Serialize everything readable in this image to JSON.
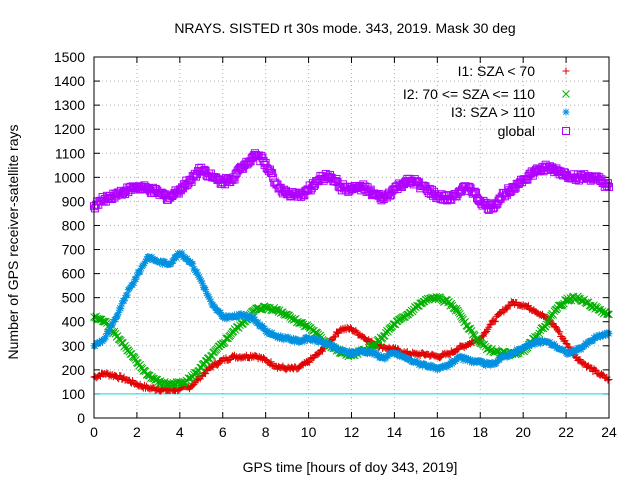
{
  "chart_data": {
    "type": "scatter",
    "title": "NRAYS. SISTED rt 30s mode. 343, 2019. Mask 30 deg",
    "xlabel": "GPS time [hours of doy 343, 2019]",
    "ylabel": "Number of GPS receiver-satellite rays",
    "xlim": [
      0,
      24
    ],
    "ylim": [
      0,
      1500
    ],
    "x_ticks": [
      "0",
      "2",
      "4",
      "6",
      "8",
      "10",
      "12",
      "14",
      "16",
      "18",
      "20",
      "22",
      "24"
    ],
    "y_ticks": [
      "0",
      "100",
      "200",
      "300",
      "400",
      "500",
      "600",
      "700",
      "800",
      "900",
      "1000",
      "1100",
      "1200",
      "1300",
      "1400",
      "1500"
    ],
    "grid": true,
    "legend_position": "top-right",
    "reference_line": {
      "y": 100,
      "color": "#00e0e0"
    },
    "series": [
      {
        "name": "I1: SZA < 70",
        "marker": "plus",
        "color": "#e00000",
        "x": [
          0,
          0.5,
          1,
          1.5,
          2,
          2.5,
          3,
          3.5,
          4,
          4.5,
          5,
          5.5,
          6,
          6.5,
          7,
          7.5,
          8,
          8.5,
          9,
          9.5,
          10,
          10.5,
          11,
          11.5,
          12,
          12.5,
          13,
          13.5,
          14,
          14.5,
          15,
          15.5,
          16,
          16.5,
          17,
          17.5,
          18,
          18.5,
          19,
          19.5,
          20,
          20.5,
          21,
          21.5,
          22,
          22.5,
          23,
          23.5,
          24
        ],
        "values": [
          170,
          185,
          175,
          160,
          140,
          125,
          120,
          115,
          120,
          130,
          175,
          215,
          240,
          255,
          255,
          260,
          240,
          215,
          205,
          205,
          235,
          270,
          320,
          370,
          370,
          340,
          310,
          295,
          285,
          270,
          265,
          265,
          255,
          265,
          290,
          310,
          330,
          390,
          440,
          480,
          470,
          450,
          420,
          380,
          310,
          250,
          215,
          185,
          160
        ]
      },
      {
        "name": "I2: 70 <= SZA <= 110",
        "marker": "x",
        "color": "#00b000",
        "x": [
          0,
          0.5,
          1,
          1.5,
          2,
          2.5,
          3,
          3.5,
          4,
          4.5,
          5,
          5.5,
          6,
          6.5,
          7,
          7.5,
          8,
          8.5,
          9,
          9.5,
          10,
          10.5,
          11,
          11.5,
          12,
          12.5,
          13,
          13.5,
          14,
          14.5,
          15,
          15.5,
          16,
          16.5,
          17,
          17.5,
          18,
          18.5,
          19,
          19.5,
          20,
          20.5,
          21,
          21.5,
          22,
          22.5,
          23,
          23.5,
          24
        ],
        "values": [
          420,
          400,
          350,
          290,
          230,
          180,
          150,
          140,
          145,
          165,
          210,
          260,
          310,
          360,
          400,
          450,
          460,
          450,
          430,
          400,
          380,
          340,
          300,
          270,
          260,
          275,
          300,
          340,
          390,
          420,
          460,
          490,
          500,
          480,
          440,
          370,
          310,
          280,
          270,
          265,
          280,
          330,
          380,
          450,
          490,
          500,
          480,
          450,
          430
        ]
      },
      {
        "name": "I3: SZA > 110",
        "marker": "star",
        "color": "#0090e0",
        "x": [
          0,
          0.5,
          1,
          1.5,
          2,
          2.5,
          3,
          3.5,
          4,
          4.5,
          5,
          5.5,
          6,
          6.5,
          7,
          7.5,
          8,
          8.5,
          9,
          9.5,
          10,
          10.5,
          11,
          11.5,
          12,
          12.5,
          13,
          13.5,
          14,
          14.5,
          15,
          15.5,
          16,
          16.5,
          17,
          17.5,
          18,
          18.5,
          19,
          19.5,
          20,
          20.5,
          21,
          21.5,
          22,
          22.5,
          23,
          23.5,
          24
        ],
        "values": [
          300,
          330,
          410,
          510,
          590,
          670,
          650,
          640,
          685,
          650,
          570,
          470,
          420,
          420,
          430,
          410,
          360,
          340,
          330,
          320,
          330,
          320,
          300,
          280,
          270,
          280,
          270,
          250,
          270,
          250,
          230,
          220,
          200,
          220,
          250,
          240,
          230,
          220,
          250,
          270,
          290,
          310,
          320,
          300,
          270,
          280,
          310,
          340,
          350
        ]
      },
      {
        "name": "global",
        "marker": "square",
        "color": "#b000ff",
        "x": [
          0,
          0.5,
          1,
          1.5,
          2,
          2.5,
          3,
          3.5,
          4,
          4.5,
          5,
          5.5,
          6,
          6.5,
          7,
          7.5,
          8,
          8.5,
          9,
          9.5,
          10,
          10.5,
          11,
          11.5,
          12,
          12.5,
          13,
          13.5,
          14,
          14.5,
          15,
          15.5,
          16,
          16.5,
          17,
          17.5,
          18,
          18.5,
          19,
          19.5,
          20,
          20.5,
          21,
          21.5,
          22,
          22.5,
          23,
          23.5,
          24
        ],
        "values": [
          880,
          910,
          930,
          945,
          960,
          950,
          935,
          915,
          950,
          990,
          1040,
          1000,
          980,
          1000,
          1050,
          1100,
          1060,
          970,
          930,
          920,
          950,
          990,
          1010,
          960,
          950,
          960,
          930,
          910,
          950,
          980,
          980,
          950,
          920,
          910,
          940,
          960,
          900,
          870,
          920,
          960,
          990,
          1020,
          1040,
          1030,
          1010,
          1000,
          1000,
          990,
          960
        ]
      }
    ]
  }
}
